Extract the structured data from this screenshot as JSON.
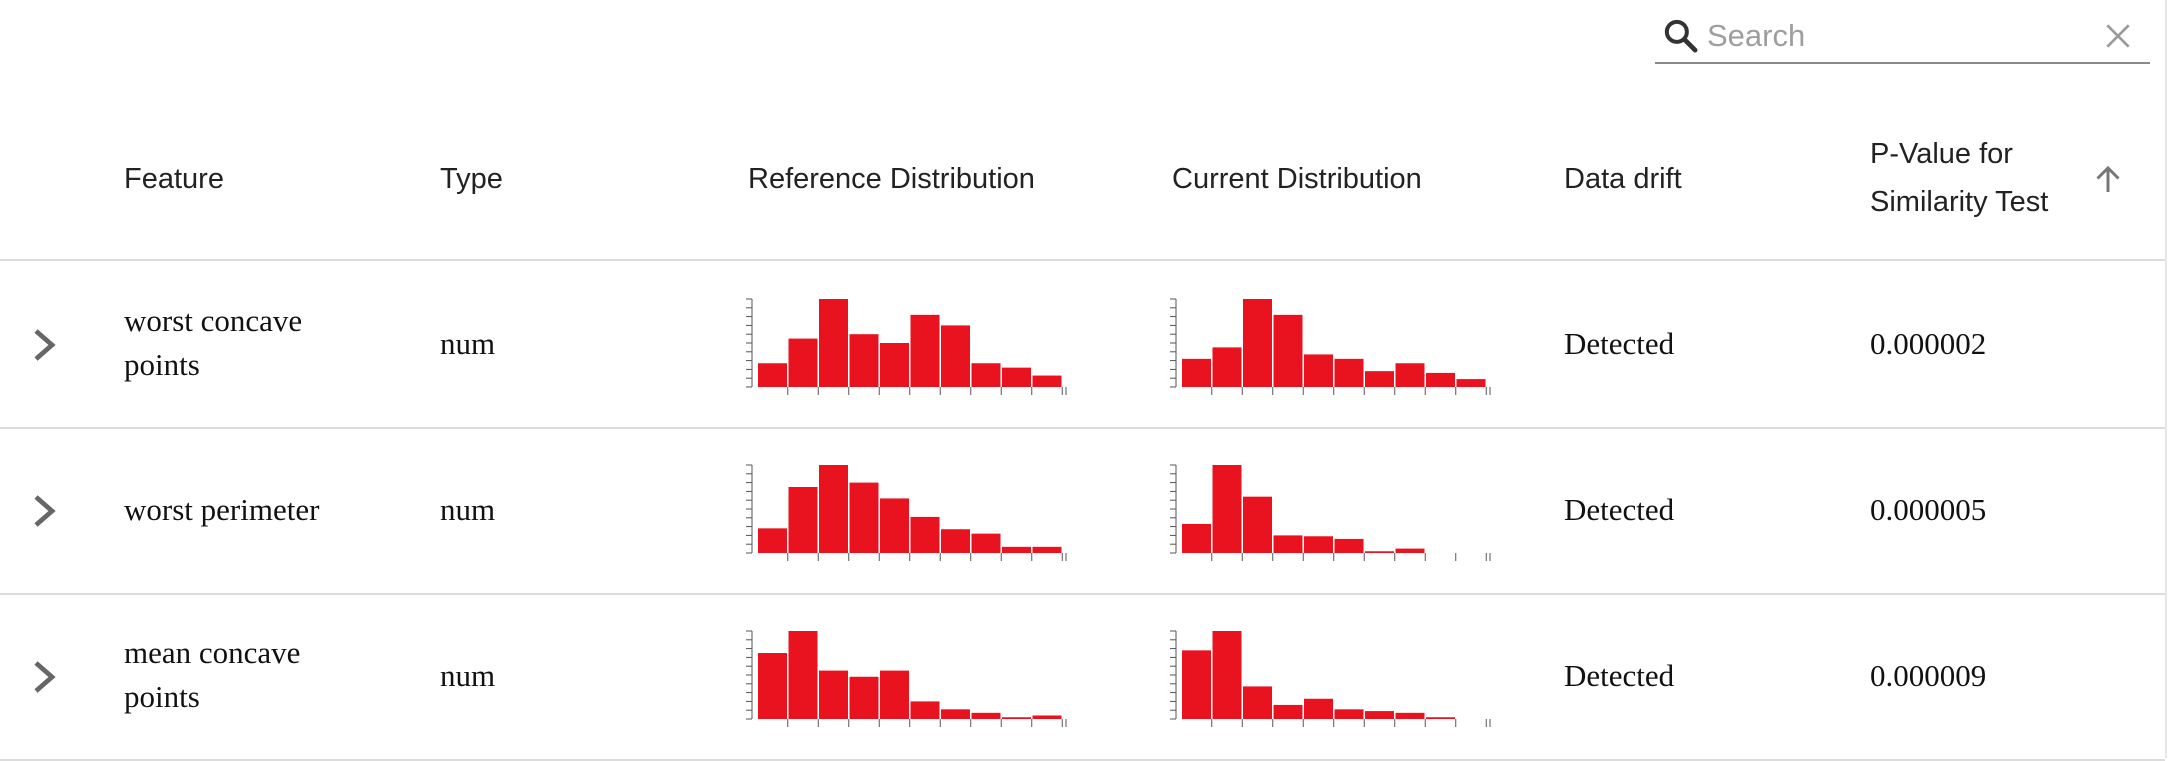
{
  "search": {
    "placeholder": "Search"
  },
  "colors": {
    "bar": "#E8131F",
    "axis": "#555555"
  },
  "columns": {
    "feature": "Feature",
    "type": "Type",
    "reference": "Reference Distribution",
    "current": "Current Distribution",
    "drift": "Data drift",
    "pvalue_line1": "P-Value for",
    "pvalue_line2": "Similarity Test"
  },
  "rows": [
    {
      "feature": "worst concave points",
      "type": "num",
      "drift": "Detected",
      "pvalue": "0.000002",
      "reference_hist": [
        0.27,
        0.55,
        1.0,
        0.6,
        0.5,
        0.82,
        0.7,
        0.27,
        0.22,
        0.13
      ],
      "current_hist": [
        0.32,
        0.45,
        1.0,
        0.82,
        0.37,
        0.32,
        0.18,
        0.27,
        0.16,
        0.09
      ]
    },
    {
      "feature": "worst perimeter",
      "type": "num",
      "drift": "Detected",
      "pvalue": "0.000005",
      "reference_hist": [
        0.28,
        0.75,
        1.0,
        0.8,
        0.62,
        0.41,
        0.27,
        0.22,
        0.07,
        0.07
      ],
      "current_hist": [
        0.33,
        1.0,
        0.64,
        0.2,
        0.19,
        0.16,
        0.02,
        0.05,
        0.0,
        0.0
      ]
    },
    {
      "feature": "mean concave points",
      "type": "num",
      "drift": "Detected",
      "pvalue": "0.000009",
      "reference_hist": [
        0.75,
        1.0,
        0.55,
        0.48,
        0.55,
        0.2,
        0.11,
        0.07,
        0.02,
        0.04
      ],
      "current_hist": [
        0.78,
        1.0,
        0.37,
        0.16,
        0.23,
        0.11,
        0.09,
        0.07,
        0.02,
        0.0
      ]
    }
  ]
}
